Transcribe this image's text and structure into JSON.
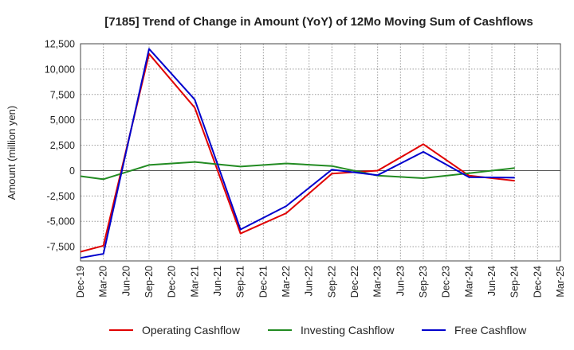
{
  "chart_data": {
    "type": "line",
    "title": "[7185]  Trend of Change in Amount (YoY) of 12Mo Moving Sum of Cashflows",
    "xlabel": "",
    "ylabel": "Amount (million yen)",
    "categories": [
      "Dec-19",
      "Mar-20",
      "Jun-20",
      "Sep-20",
      "Dec-20",
      "Mar-21",
      "Jun-21",
      "Sep-21",
      "Dec-21",
      "Mar-22",
      "Jun-22",
      "Sep-22",
      "Dec-22",
      "Mar-23",
      "Jun-23",
      "Sep-23",
      "Dec-23",
      "Mar-24",
      "Jun-24",
      "Sep-24",
      "Dec-24",
      "Mar-25"
    ],
    "yticks": [
      -7500,
      -5000,
      -2500,
      0,
      2500,
      5000,
      7500,
      10000,
      12500
    ],
    "ytick_labels": [
      "-7,500",
      "-5,000",
      "-2,500",
      "0",
      "2,500",
      "5,000",
      "7,500",
      "10,000",
      "12,500"
    ],
    "ylim": [
      -8900,
      12500
    ],
    "grid": true,
    "legend_position": "bottom",
    "series": [
      {
        "name": "Operating Cashflow",
        "color": "#e00000",
        "values": [
          -8000,
          -7400,
          null,
          11500,
          null,
          6200,
          null,
          -6200,
          null,
          -4200,
          null,
          -300,
          null,
          0,
          null,
          2600,
          null,
          -500,
          null,
          -1000,
          null,
          null
        ]
      },
      {
        "name": "Investing Cashflow",
        "color": "#228b22",
        "values": [
          -550,
          -850,
          null,
          550,
          null,
          850,
          null,
          400,
          null,
          700,
          null,
          450,
          null,
          -500,
          null,
          -750,
          null,
          -250,
          null,
          250,
          null,
          null
        ]
      },
      {
        "name": "Free Cashflow",
        "color": "#0000cc",
        "values": [
          -8600,
          -8200,
          null,
          12000,
          null,
          7000,
          null,
          -5800,
          null,
          -3500,
          null,
          100,
          null,
          -450,
          null,
          1850,
          null,
          -650,
          null,
          -700,
          null,
          null
        ]
      }
    ]
  }
}
